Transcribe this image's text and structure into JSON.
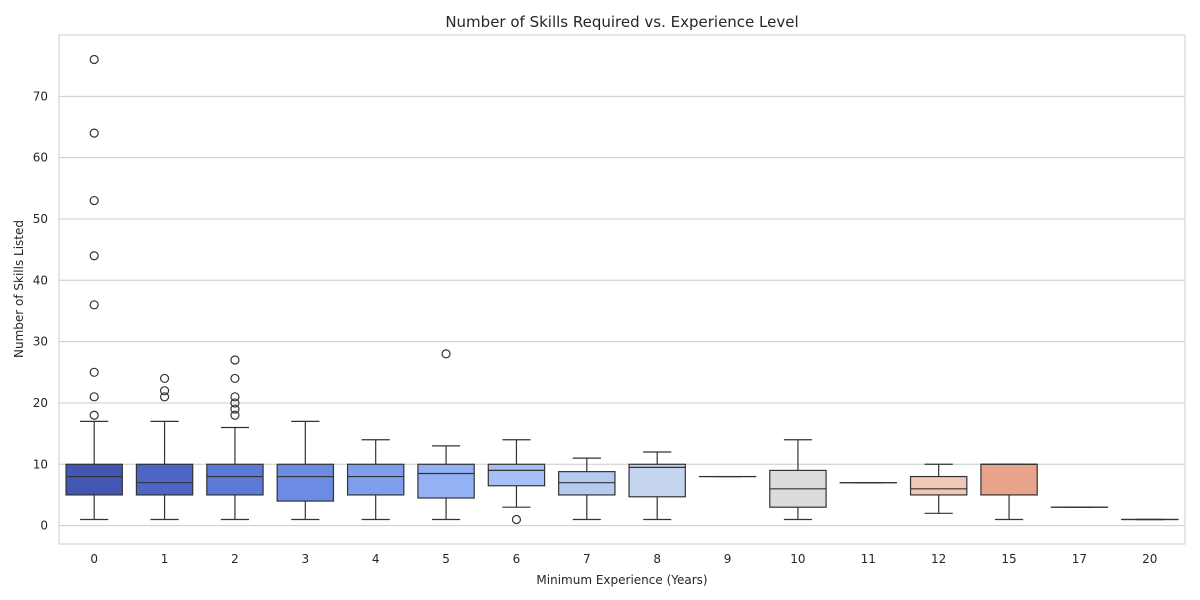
{
  "chart_data": {
    "type": "box",
    "title": "Number of Skills Required vs. Experience Level",
    "xlabel": "Minimum Experience (Years)",
    "ylabel": "Number of Skills Listed",
    "ylim": [
      -3,
      80
    ],
    "yticks": [
      0,
      10,
      20,
      30,
      40,
      50,
      60,
      70
    ],
    "grid": true,
    "palette": "coolwarm",
    "categories": [
      "0",
      "1",
      "2",
      "3",
      "4",
      "5",
      "6",
      "7",
      "8",
      "9",
      "10",
      "11",
      "12",
      "15",
      "17",
      "20"
    ],
    "boxes": [
      {
        "category": "0",
        "whisker_low": 1,
        "q1": 5,
        "median": 8,
        "q3": 10,
        "whisker_high": 17,
        "outliers": [
          18,
          21,
          25,
          36,
          44,
          53,
          64,
          76
        ],
        "color": "#4356b3"
      },
      {
        "category": "1",
        "whisker_low": 1,
        "q1": 5,
        "median": 7,
        "q3": 10,
        "whisker_high": 17,
        "outliers": [
          21,
          22,
          24
        ],
        "color": "#4d66c6"
      },
      {
        "category": "2",
        "whisker_low": 1,
        "q1": 5,
        "median": 8,
        "q3": 10,
        "whisker_high": 16,
        "outliers": [
          18,
          19,
          20,
          21,
          24,
          27
        ],
        "color": "#5b7ad8"
      },
      {
        "category": "3",
        "whisker_low": 1,
        "q1": 4,
        "median": 8,
        "q3": 10,
        "whisker_high": 17,
        "outliers": [],
        "color": "#6c8ce3"
      },
      {
        "category": "4",
        "whisker_low": 1,
        "q1": 5,
        "median": 8,
        "q3": 10,
        "whisker_high": 14,
        "outliers": [],
        "color": "#7e9ded"
      },
      {
        "category": "5",
        "whisker_low": 1,
        "q1": 4.5,
        "median": 8.5,
        "q3": 10,
        "whisker_high": 13,
        "outliers": [
          28
        ],
        "color": "#93b1f3"
      },
      {
        "category": "6",
        "whisker_low": 3,
        "q1": 6.5,
        "median": 9,
        "q3": 10,
        "whisker_high": 14,
        "outliers": [
          1
        ],
        "color": "#a5c0f6"
      },
      {
        "category": "7",
        "whisker_low": 1,
        "q1": 5,
        "median": 7,
        "q3": 8.8,
        "whisker_high": 11,
        "outliers": [],
        "color": "#b6cbf2"
      },
      {
        "category": "8",
        "whisker_low": 1,
        "q1": 4.7,
        "median": 9.5,
        "q3": 10,
        "whisker_high": 12,
        "outliers": [],
        "color": "#c6d5ef"
      },
      {
        "category": "9",
        "whisker_low": 8,
        "q1": 8,
        "median": 8,
        "q3": 8,
        "whisker_high": 8,
        "outliers": [],
        "color": "#d4dbe8"
      },
      {
        "category": "10",
        "whisker_low": 1,
        "q1": 3,
        "median": 6,
        "q3": 9,
        "whisker_high": 14,
        "outliers": [],
        "color": "#dcdcdc"
      },
      {
        "category": "11",
        "whisker_low": 7,
        "q1": 7,
        "median": 7,
        "q3": 7,
        "whisker_high": 7,
        "outliers": [],
        "color": "#e9d5ca"
      },
      {
        "category": "12",
        "whisker_low": 2,
        "q1": 5,
        "median": 6,
        "q3": 8,
        "whisker_high": 10,
        "outliers": [],
        "color": "#efc9b6"
      },
      {
        "category": "15",
        "whisker_low": 1,
        "q1": 5,
        "median": 10,
        "q3": 10,
        "whisker_high": 10,
        "outliers": [],
        "color": "#e8a38b"
      },
      {
        "category": "17",
        "whisker_low": 3,
        "q1": 3,
        "median": 3,
        "q3": 3,
        "whisker_high": 3,
        "outliers": [],
        "color": "#e0907a"
      },
      {
        "category": "20",
        "whisker_low": 1,
        "q1": 1,
        "median": 1,
        "q3": 1,
        "whisker_high": 1,
        "outliers": [],
        "color": "#d66f5a"
      }
    ]
  }
}
